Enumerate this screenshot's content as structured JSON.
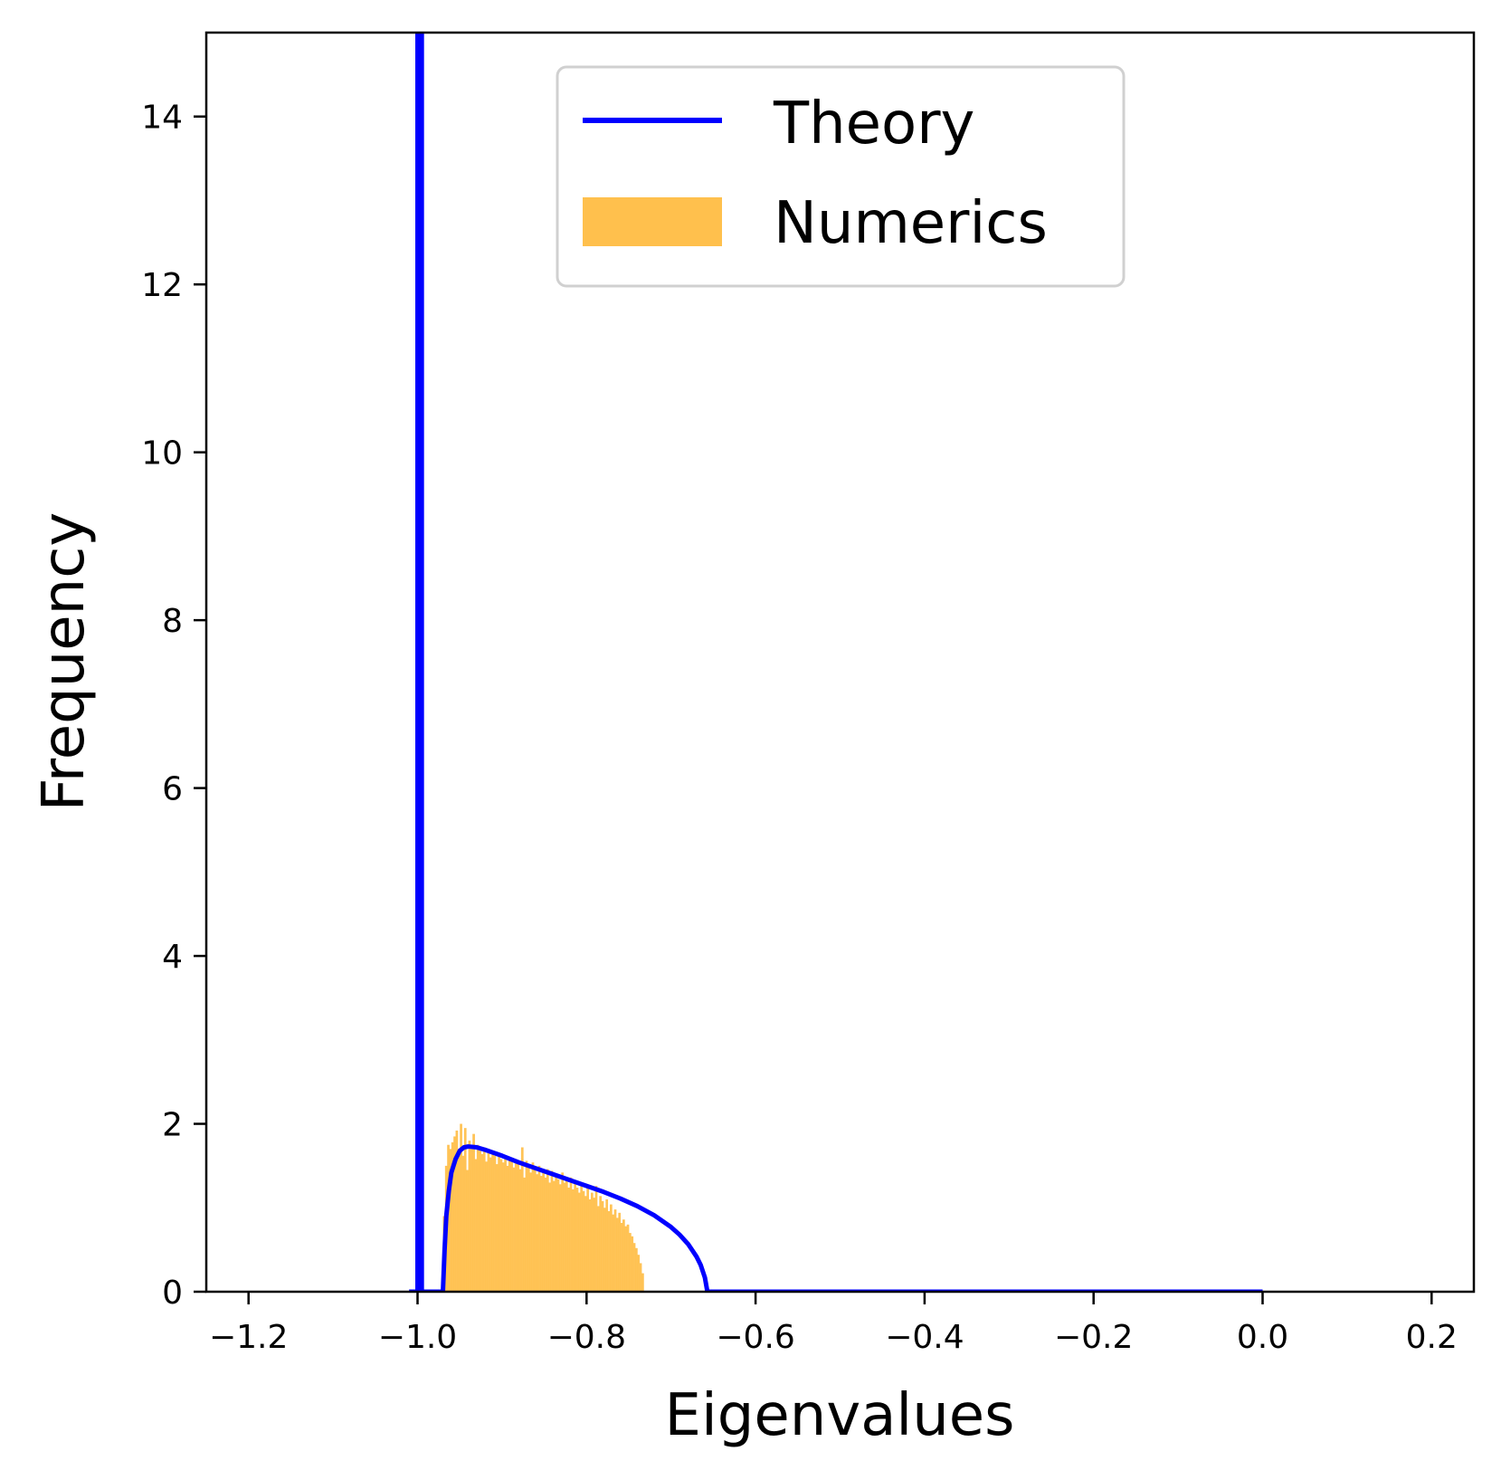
{
  "chart_data": {
    "type": "histogram",
    "title": "",
    "xlabel": "Eigenvalues",
    "ylabel": "Frequency",
    "xlim": [
      -1.25,
      0.25
    ],
    "ylim": [
      0,
      15
    ],
    "xticks": [
      -1.2,
      -1.0,
      -0.8,
      -0.6,
      -0.4,
      -0.2,
      0.0,
      0.2
    ],
    "xtick_labels": [
      "−1.2",
      "−1.0",
      "−0.8",
      "−0.6",
      "−0.4",
      "−0.2",
      "0.0",
      "0.2"
    ],
    "yticks": [
      0,
      2,
      4,
      6,
      8,
      10,
      12,
      14
    ],
    "ytick_labels": [
      "0",
      "2",
      "4",
      "6",
      "8",
      "10",
      "12",
      "14"
    ],
    "grid": false,
    "legend": {
      "position": "top-center"
    },
    "colors": {
      "theory": "#0000ff",
      "numerics": "#ffc04d"
    },
    "series": [
      {
        "name": "Theory",
        "kind": "line",
        "points": [
          [
            -1.01,
            0
          ],
          [
            -1.0,
            0
          ],
          [
            -1.0,
            15
          ],
          [
            -0.995,
            15
          ],
          [
            -0.995,
            0
          ],
          [
            -0.97,
            0
          ],
          [
            -0.968,
            0.5
          ],
          [
            -0.966,
            0.9
          ],
          [
            -0.963,
            1.2
          ],
          [
            -0.96,
            1.42
          ],
          [
            -0.955,
            1.58
          ],
          [
            -0.95,
            1.68
          ],
          [
            -0.945,
            1.72
          ],
          [
            -0.94,
            1.73
          ],
          [
            -0.93,
            1.72
          ],
          [
            -0.92,
            1.69
          ],
          [
            -0.9,
            1.62
          ],
          [
            -0.88,
            1.54
          ],
          [
            -0.86,
            1.47
          ],
          [
            -0.84,
            1.4
          ],
          [
            -0.82,
            1.33
          ],
          [
            -0.8,
            1.26
          ],
          [
            -0.78,
            1.19
          ],
          [
            -0.76,
            1.11
          ],
          [
            -0.74,
            1.02
          ],
          [
            -0.72,
            0.91
          ],
          [
            -0.7,
            0.77
          ],
          [
            -0.69,
            0.68
          ],
          [
            -0.68,
            0.57
          ],
          [
            -0.67,
            0.42
          ],
          [
            -0.665,
            0.32
          ],
          [
            -0.66,
            0.17
          ],
          [
            -0.657,
            0
          ],
          [
            -0.5,
            0
          ],
          [
            -0.3,
            0
          ],
          [
            0.0,
            0
          ]
        ]
      },
      {
        "name": "Numerics",
        "kind": "histogram",
        "bin_start": -0.97,
        "bin_width": 0.0025,
        "values": [
          0.9,
          1.5,
          1.75,
          1.7,
          1.78,
          1.85,
          1.92,
          1.68,
          2.0,
          1.62,
          1.95,
          1.45,
          1.8,
          1.7,
          1.88,
          1.58,
          1.75,
          1.68,
          1.64,
          1.72,
          1.55,
          1.7,
          1.6,
          1.66,
          1.62,
          1.52,
          1.65,
          1.58,
          1.54,
          1.62,
          1.5,
          1.6,
          1.56,
          1.48,
          1.58,
          1.52,
          1.46,
          1.72,
          1.36,
          1.56,
          1.48,
          1.42,
          1.54,
          1.46,
          1.4,
          1.5,
          1.38,
          1.44,
          1.36,
          1.46,
          1.3,
          1.44,
          1.32,
          1.4,
          1.34,
          1.28,
          1.42,
          1.3,
          1.34,
          1.24,
          1.36,
          1.22,
          1.3,
          1.24,
          1.18,
          1.26,
          1.2,
          1.14,
          1.24,
          1.1,
          1.18,
          1.12,
          1.26,
          1.02,
          1.14,
          1.08,
          1.0,
          1.1,
          0.96,
          1.04,
          0.92,
          0.98,
          0.88,
          0.94,
          0.82,
          0.86,
          0.78,
          0.8,
          0.7,
          0.66,
          0.58,
          0.52,
          0.44,
          0.34,
          0.22
        ]
      }
    ]
  }
}
